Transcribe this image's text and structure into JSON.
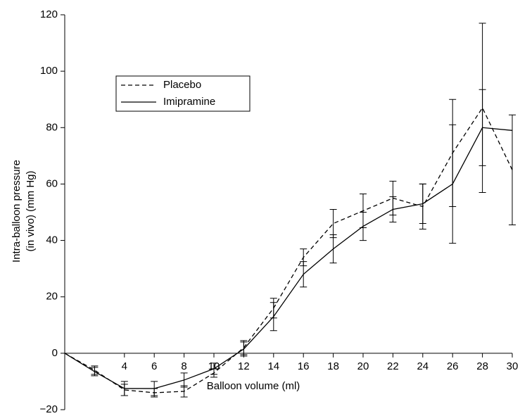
{
  "chart_data": {
    "type": "line",
    "x": [
      0,
      2,
      4,
      6,
      8,
      10,
      12,
      14,
      16,
      18,
      20,
      22,
      24,
      26,
      28,
      30
    ],
    "series": [
      {
        "name": "Placebo",
        "color": "#000000",
        "dash": true,
        "values": [
          0,
          -6,
          -13,
          -14,
          -13.5,
          -7,
          2,
          16,
          34,
          46,
          50.5,
          55,
          52,
          71,
          87,
          65
        ],
        "errors": [
          null,
          1.5,
          2,
          1.5,
          2,
          1.5,
          2.5,
          3.5,
          3,
          5,
          6,
          6,
          8,
          19,
          30,
          19.5
        ]
      },
      {
        "name": "Imipramine",
        "color": "#000000",
        "dash": false,
        "values": [
          0,
          -6.5,
          -12.5,
          -12.5,
          -9.5,
          -5.5,
          1.5,
          13,
          28,
          37,
          45,
          51,
          53,
          60,
          80,
          79
        ],
        "errors": [
          null,
          1.5,
          2.5,
          2.5,
          2.5,
          2,
          2.5,
          5,
          4.5,
          5,
          5,
          4.5,
          7,
          21,
          13.5,
          null
        ]
      }
    ],
    "xlabel": "Balloon volume (ml)",
    "ylabel": [
      "Intra-balloon pressure",
      "(in vivo) (mm Hg)"
    ],
    "xlim": [
      0,
      30
    ],
    "ylim": [
      -20,
      120
    ],
    "xticks": [
      4,
      6,
      8,
      10,
      12,
      14,
      16,
      18,
      20,
      22,
      24,
      26,
      28,
      30
    ],
    "yticks": [
      {
        "value": -20,
        "label": "−20"
      },
      0,
      20,
      40,
      60,
      80,
      100,
      120
    ]
  }
}
